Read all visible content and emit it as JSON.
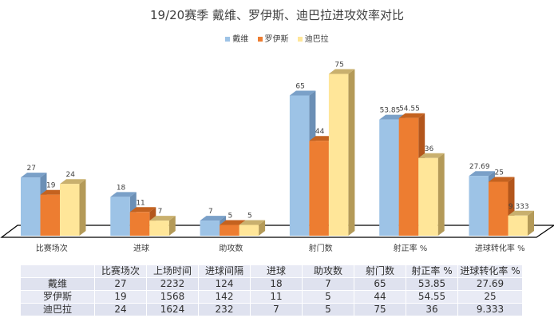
{
  "chart_data": {
    "type": "bar",
    "subtype": "3d-clustered-column",
    "title": "19/20赛季 戴维、罗伊斯、迪巴拉进攻效率对比",
    "xlabel": "",
    "ylabel": "",
    "categories": [
      "比赛场次",
      "进球",
      "助攻数",
      "射门数",
      "射正率 %",
      "进球转化率 %"
    ],
    "series": [
      {
        "name": "戴维",
        "color": "#9dc3e6",
        "values": [
          27,
          18,
          7,
          65,
          53.85,
          27.69
        ],
        "labels": [
          "27",
          "18",
          "7",
          "65",
          "53.85",
          "27.69"
        ]
      },
      {
        "name": "罗伊斯",
        "color": "#ed7d31",
        "values": [
          19,
          11,
          5,
          44,
          54.55,
          25
        ],
        "labels": [
          "19",
          "11",
          "5",
          "44",
          "54.55",
          "25"
        ]
      },
      {
        "name": "迪巴拉",
        "color": "#ffe699",
        "values": [
          24,
          7,
          5,
          75,
          36,
          9.333
        ],
        "labels": [
          "24",
          "7",
          "5",
          "75",
          "36",
          "9.333"
        ]
      }
    ],
    "ylim": [
      0,
      80
    ],
    "grid": false,
    "legend_position": "top"
  },
  "table": {
    "headers": [
      "",
      "比赛场次",
      "上场时间",
      "进球间隔",
      "进球",
      "助攻数",
      "射门数",
      "射正率 %",
      "进球转化率 %"
    ],
    "rows": [
      [
        "戴维",
        "27",
        "2232",
        "124",
        "18",
        "7",
        "65",
        "53.85",
        "27.69"
      ],
      [
        "罗伊斯",
        "19",
        "1568",
        "142",
        "11",
        "5",
        "44",
        "54.55",
        "25"
      ],
      [
        "迪巴拉",
        "24",
        "1624",
        "232",
        "7",
        "5",
        "75",
        "36",
        "9.333"
      ]
    ]
  }
}
